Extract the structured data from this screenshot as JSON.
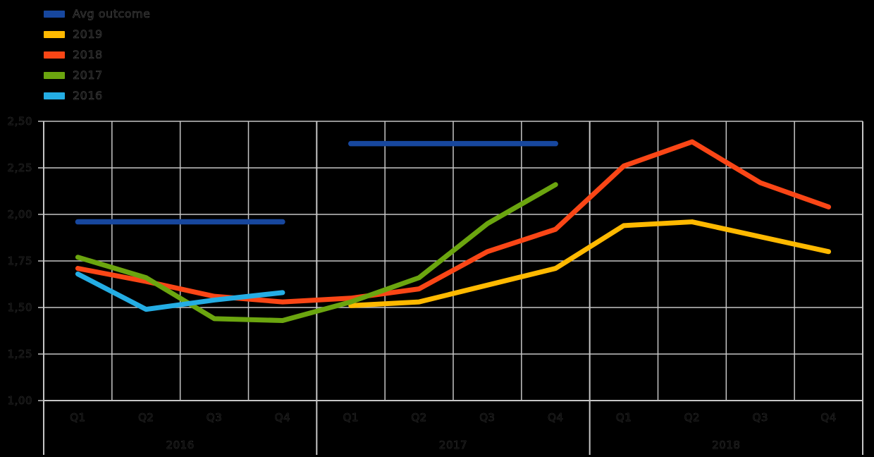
{
  "legend": {
    "items": [
      {
        "label": "Avg outcome",
        "color": "#17479E"
      },
      {
        "label": "2019",
        "color": "#FFB900"
      },
      {
        "label": "2018",
        "color": "#FA4616"
      },
      {
        "label": "2017",
        "color": "#6BA50F"
      },
      {
        "label": "2016",
        "color": "#24ADE4"
      }
    ]
  },
  "chart_data": {
    "type": "line",
    "title": "",
    "xlabel": "",
    "ylabel": "",
    "grid": true,
    "legend_position": "top-left",
    "background_color": "#000000",
    "gridline_color": "#C6C6C6",
    "ylim": [
      1.0,
      2.5
    ],
    "y_ticks": [
      {
        "value": 2.5,
        "label": "2,50"
      },
      {
        "value": 2.25,
        "label": "2,25"
      },
      {
        "value": 2.0,
        "label": "2,00"
      },
      {
        "value": 1.75,
        "label": "1,75"
      },
      {
        "value": 1.5,
        "label": "1,50"
      },
      {
        "value": 1.25,
        "label": "1,25"
      },
      {
        "value": 1.0,
        "label": "1,00"
      }
    ],
    "x_groups": [
      {
        "year": "2016",
        "quarters": [
          "Q1",
          "Q2",
          "Q3",
          "Q4"
        ]
      },
      {
        "year": "2017",
        "quarters": [
          "Q1",
          "Q2",
          "Q3",
          "Q4"
        ]
      },
      {
        "year": "2018",
        "quarters": [
          "Q1",
          "Q2",
          "Q3",
          "Q4"
        ]
      }
    ],
    "series": [
      {
        "name": "2019",
        "color": "#FFB900",
        "start_quarter_index": 4,
        "values": [
          1.51,
          1.53,
          1.62,
          1.71,
          1.94,
          1.96,
          1.88,
          1.8
        ]
      },
      {
        "name": "2018",
        "color": "#FA4616",
        "start_quarter_index": 0,
        "values": [
          1.71,
          1.64,
          1.56,
          1.53,
          1.55,
          1.6,
          1.8,
          1.92,
          2.26,
          2.39,
          2.17,
          2.04
        ]
      },
      {
        "name": "2017",
        "color": "#6BA50F",
        "start_quarter_index": 0,
        "values": [
          1.77,
          1.66,
          1.44,
          1.43,
          1.53,
          1.66,
          1.95,
          2.16
        ]
      },
      {
        "name": "2016",
        "color": "#24ADE4",
        "start_quarter_index": 0,
        "values": [
          1.68,
          1.49,
          1.54,
          1.58
        ]
      }
    ],
    "outcome_segments": [
      {
        "name": "Avg outcome",
        "year": "2016",
        "value": 1.96,
        "from_quarter_index": 0,
        "to_quarter_index": 3,
        "color": "#17479E"
      },
      {
        "name": "Avg outcome",
        "year": "2017",
        "value": 2.38,
        "from_quarter_index": 4,
        "to_quarter_index": 7,
        "color": "#17479E"
      }
    ]
  }
}
